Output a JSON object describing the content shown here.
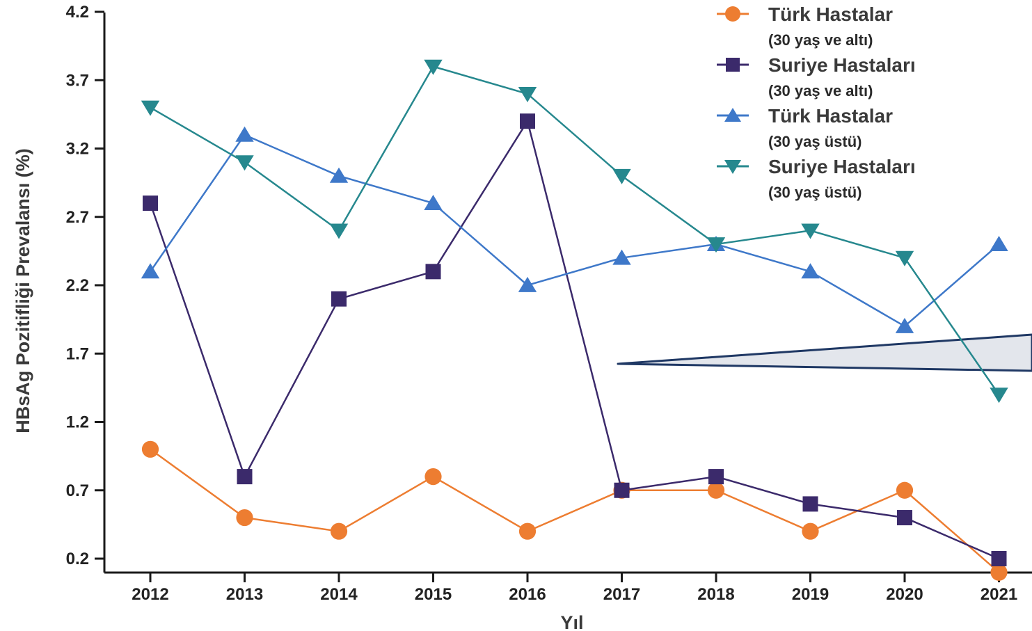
{
  "chart_data": {
    "type": "line",
    "xlabel": "Yıl",
    "ylabel": "HBsAg Pozitifliği Prevalansı (%)",
    "x": [
      2012,
      2013,
      2014,
      2015,
      2016,
      2017,
      2018,
      2019,
      2020,
      2021
    ],
    "x_tick_labels": [
      "2012",
      "2013",
      "2014",
      "2015",
      "2016",
      "2017",
      "2018",
      "2019",
      "2020",
      "2021"
    ],
    "y_ticks": [
      0.2,
      0.7,
      1.2,
      1.7,
      2.2,
      2.7,
      3.2,
      3.7,
      4.2
    ],
    "y_tick_labels": [
      "0.2",
      "0.7",
      "1.2",
      "1.7",
      "2.2",
      "2.7",
      "3.2",
      "3.7",
      "4.2"
    ],
    "ylim": [
      0.1,
      4.2
    ],
    "grid": false,
    "legend_position": "top-right",
    "series": [
      {
        "name": "Türk Hastalar",
        "subtitle": "(30 yaş ve altı)",
        "marker": "circle",
        "color": "#ED7D31",
        "values": [
          1.0,
          0.5,
          0.4,
          0.8,
          0.4,
          0.7,
          0.7,
          0.4,
          0.7,
          0.1
        ]
      },
      {
        "name": "Suriye Hastaları",
        "subtitle": "(30 yaş ve altı)",
        "marker": "square",
        "color": "#3B2A6B",
        "values": [
          2.8,
          0.8,
          2.1,
          2.3,
          3.4,
          0.7,
          0.8,
          0.6,
          0.5,
          0.2
        ]
      },
      {
        "name": "Türk Hastalar",
        "subtitle": "(30 yaş üstü)",
        "marker": "triangle-up",
        "color": "#3E78C9",
        "values": [
          2.3,
          3.3,
          3.0,
          2.8,
          2.2,
          2.4,
          2.5,
          2.3,
          1.9,
          2.5
        ]
      },
      {
        "name": "Suriye Hastaları",
        "subtitle": "(30 yaş üstü)",
        "marker": "triangle-down",
        "color": "#26888E",
        "values": [
          3.5,
          3.1,
          2.6,
          3.8,
          3.6,
          3.0,
          2.5,
          2.6,
          2.4,
          1.4
        ]
      }
    ],
    "annotation": {
      "shape": "callout-wedge",
      "fill": "#E3E6EC",
      "stroke": "#1F3864"
    }
  }
}
